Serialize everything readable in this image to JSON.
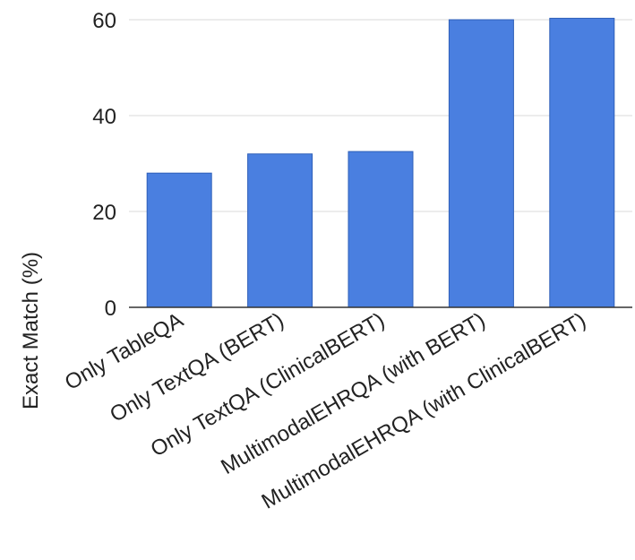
{
  "chart_data": {
    "type": "bar",
    "title": "",
    "xlabel": "",
    "ylabel": "Exact Match (%)",
    "categories": [
      "Only TableQA",
      "Only TextQA (BERT)",
      "Only TextQA (ClinicalBERT)",
      "MultimodalEHRQA (with BERT)",
      "MultimodalEHRQA (with ClinicalBERT)"
    ],
    "values": [
      28.0,
      32.0,
      32.5,
      60.0,
      60.3
    ],
    "ylim": [
      0,
      60
    ],
    "yticks": [
      0,
      20,
      40,
      60
    ],
    "grid": true,
    "legend": "none",
    "colors": {
      "bar": "#4a7fe0",
      "bar_edge": "#2e5fb8",
      "grid": "#d9d9d9",
      "axis": "#333333"
    }
  }
}
